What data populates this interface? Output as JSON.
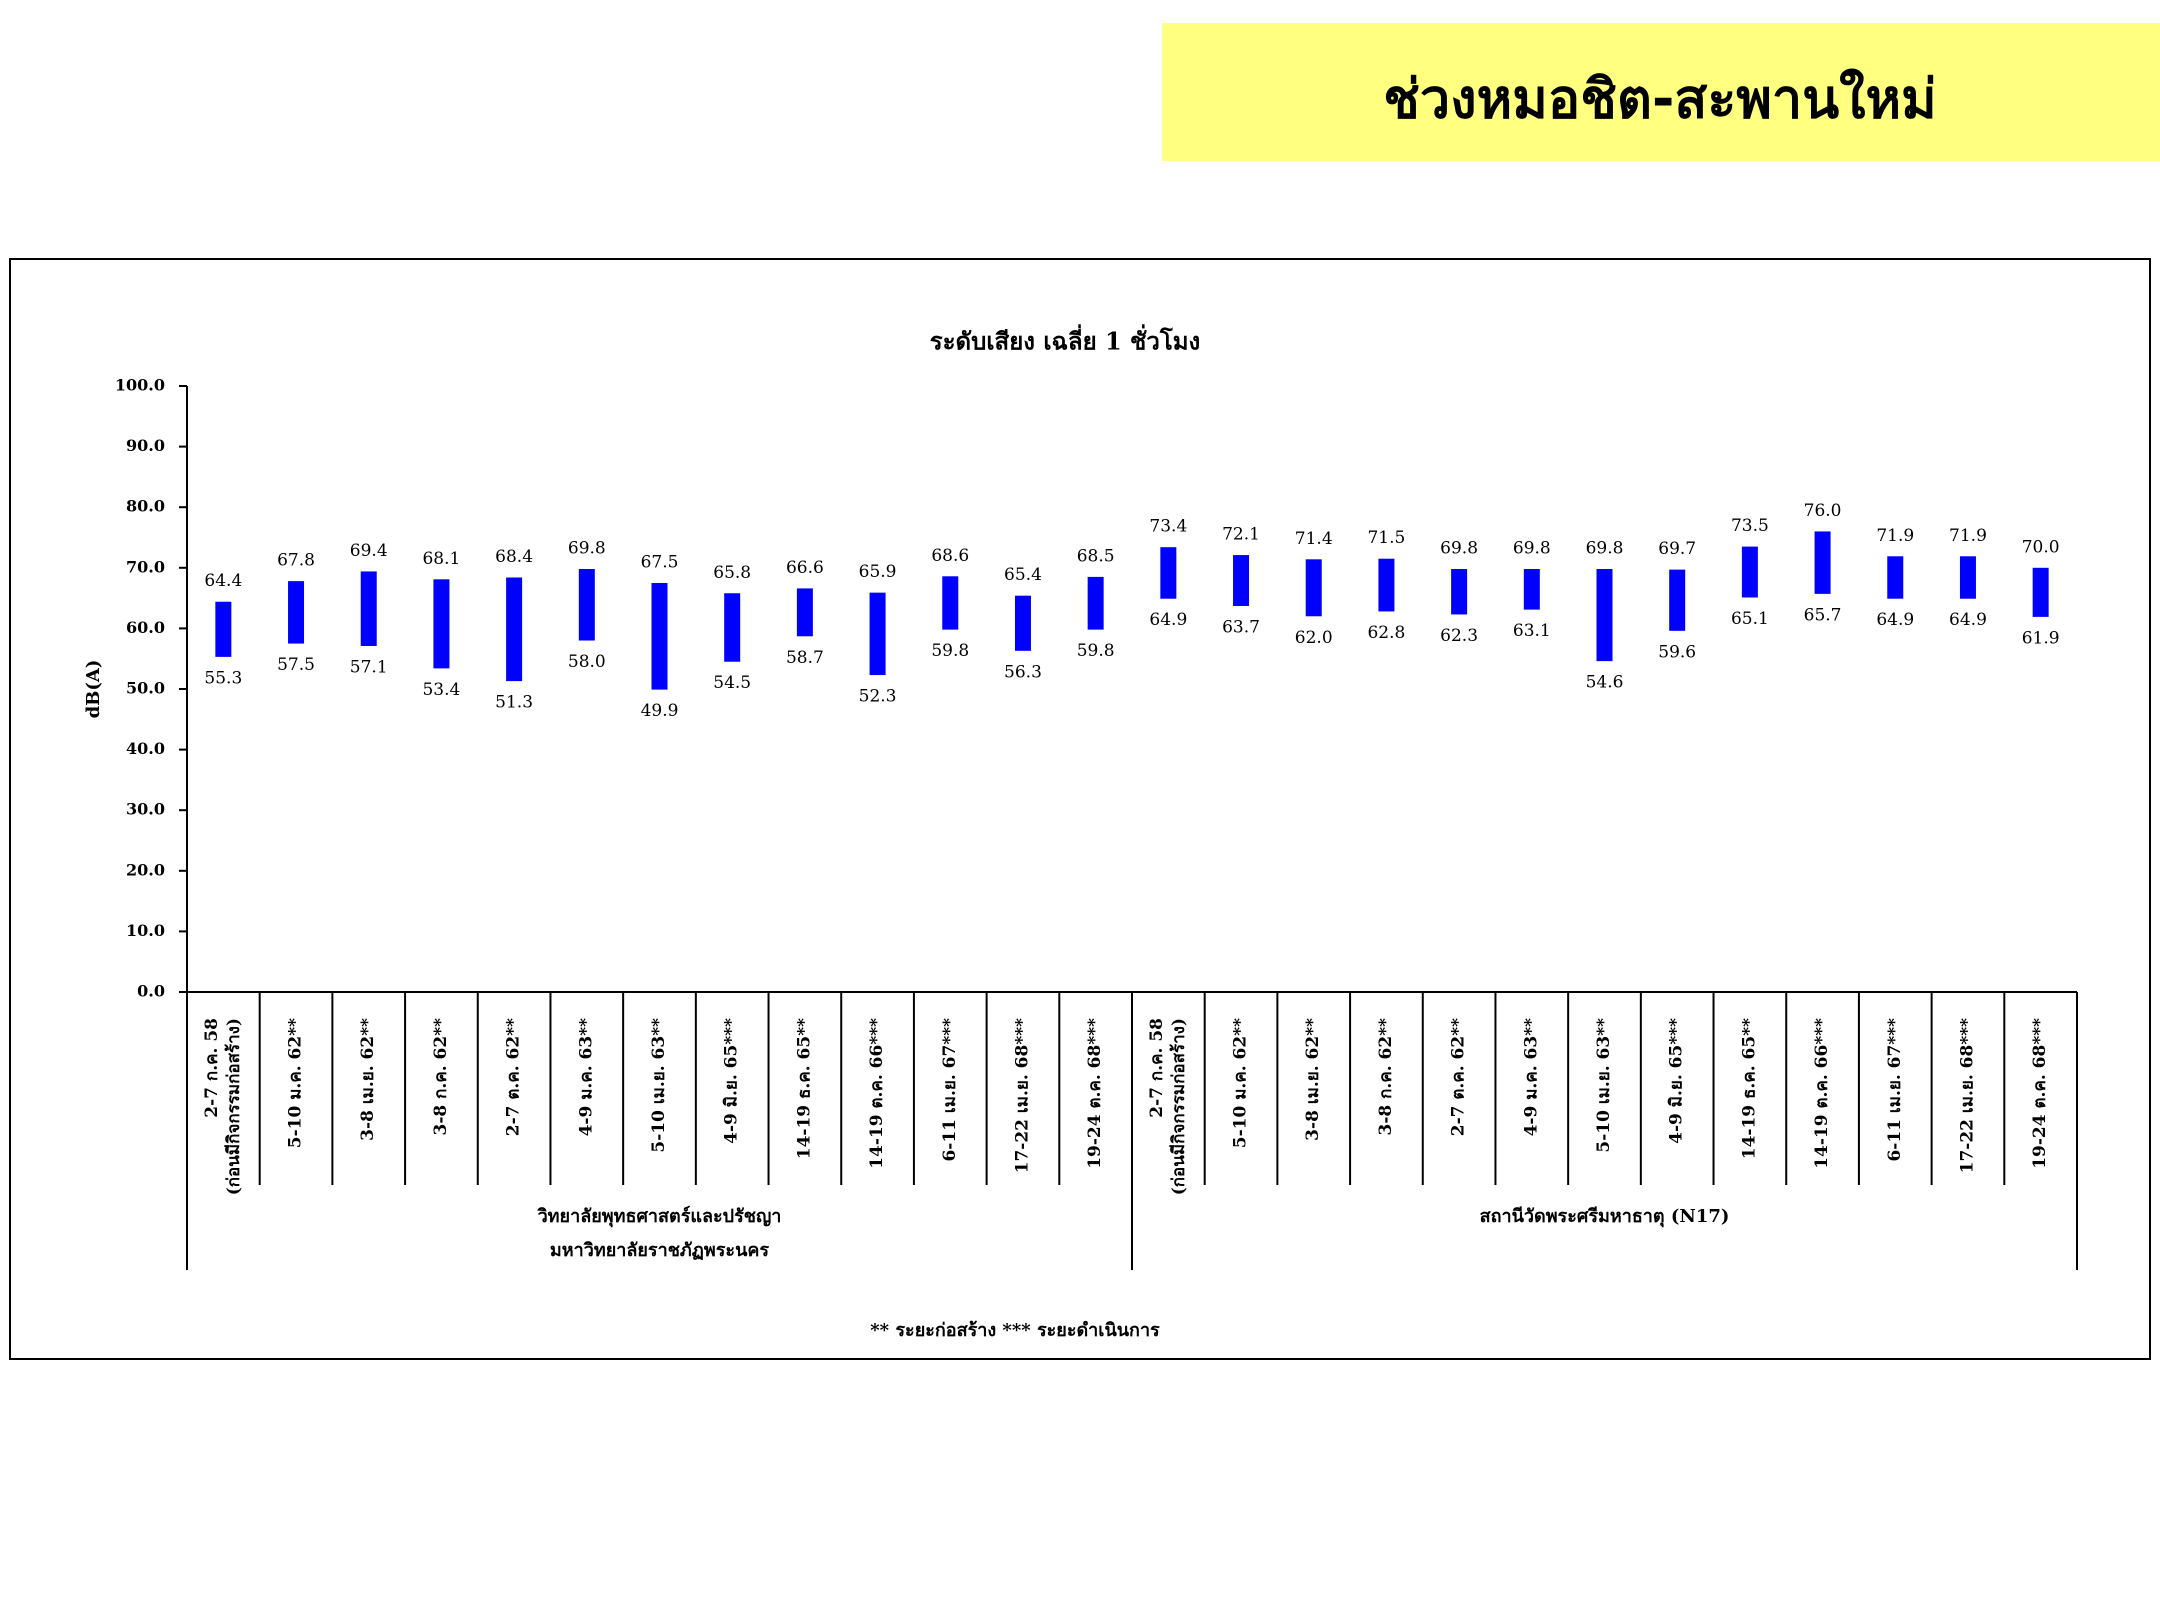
{
  "header": {
    "title": "ช่วงหมอชิต-สะพานใหม่"
  },
  "chart_data": {
    "type": "range-bar",
    "title": "ระดับเสียง เฉลี่ย 1 ชั่วโมง",
    "y_label": "dB(A)",
    "categories": [
      [
        "2-7 ก.ค. 58",
        "(ก่อนมีกิจกรรมก่อสร้าง)"
      ],
      [
        "5-10 ม.ค. 62**"
      ],
      [
        "3-8 เม.ย. 62**"
      ],
      [
        "3-8 ก.ค. 62**"
      ],
      [
        "2-7 ต.ค. 62**"
      ],
      [
        "4-9 ม.ค. 63**"
      ],
      [
        "5-10 เม.ย. 63**"
      ],
      [
        "4-9 มิ.ย. 65***"
      ],
      [
        "14-19 ธ.ค. 65**"
      ],
      [
        "14-19 ต.ค. 66***"
      ],
      [
        "6-11 เม.ย. 67***"
      ],
      [
        "17-22 เม.ย. 68***"
      ],
      [
        "19-24 ต.ค. 68***"
      ],
      [
        "2-7 ก.ค. 58",
        "(ก่อนมีกิจกรรมก่อสร้าง)"
      ],
      [
        "5-10 ม.ค. 62**"
      ],
      [
        "3-8 เม.ย. 62**"
      ],
      [
        "3-8 ก.ค. 62**"
      ],
      [
        "2-7 ต.ค. 62**"
      ],
      [
        "4-9 ม.ค. 63**"
      ],
      [
        "5-10 เม.ย. 63**"
      ],
      [
        "4-9 มิ.ย. 65***"
      ],
      [
        "14-19 ธ.ค. 65**"
      ],
      [
        "14-19 ต.ค. 66***"
      ],
      [
        "6-11 เม.ย. 67***"
      ],
      [
        "17-22 เม.ย. 68***"
      ],
      [
        "19-24 ต.ค. 68***"
      ]
    ],
    "groups": [
      {
        "label": [
          "วิทยาลัยพุทธศาสตร์และปรัชญา",
          "มหาวิทยาลัยราชภัฏพระนคร"
        ],
        "count": 13
      },
      {
        "label": [
          "สถานีวัดพระศรีมหาธาตุ (N17)"
        ],
        "count": 13
      }
    ],
    "series": [
      {
        "color": "#0000ff",
        "values": [
          55.3,
          57.5,
          57.1,
          53.4,
          51.3,
          58.0,
          49.9,
          54.5,
          58.7,
          52.3,
          59.8,
          56.3,
          59.8,
          64.9,
          63.7,
          62.0,
          62.8,
          62.3,
          63.1,
          54.6,
          59.6,
          65.1,
          65.7,
          64.9,
          64.9,
          61.9
        ],
        "value_labels": [
          "55.3",
          "57.5",
          "57.1",
          "53.4",
          "51.3",
          "58.0",
          "49.9",
          "54.5",
          "58.7",
          "52.3",
          "59.8",
          "56.3",
          "59.8",
          "64.9",
          "63.7",
          "62.0",
          "62.8",
          "62.3",
          "63.1",
          "54.6",
          "59.6",
          "65.1",
          "65.7",
          "64.9",
          "64.9",
          "61.9"
        ]
      },
      {
        "color": "#0000ff",
        "values": [
          64.4,
          67.8,
          69.4,
          68.1,
          68.4,
          69.8,
          67.5,
          65.8,
          66.6,
          65.9,
          68.6,
          65.4,
          68.5,
          73.4,
          72.1,
          71.4,
          71.5,
          69.8,
          69.8,
          69.8,
          69.7,
          73.5,
          76.0,
          71.9,
          71.9,
          70.0
        ],
        "value_labels": [
          "64.4",
          "67.8",
          "69.4",
          "68.1",
          "68.4",
          "69.8",
          "67.5",
          "65.8",
          "66.6",
          "65.9",
          "68.6",
          "65.4",
          "68.5",
          "73.4",
          "72.1",
          "71.4",
          "71.5",
          "69.8",
          "69.8",
          "69.8",
          "69.7",
          "73.5",
          "76.0",
          "71.9",
          "71.9",
          "70.0"
        ]
      }
    ],
    "ylim": [
      0,
      100
    ],
    "yticks": [
      {
        "value": 0,
        "label": "0.0"
      },
      {
        "value": 10,
        "label": "10.0"
      },
      {
        "value": 20,
        "label": "20.0"
      },
      {
        "value": 30,
        "label": "30.0"
      },
      {
        "value": 40,
        "label": "40.0"
      },
      {
        "value": 50,
        "label": "50.0"
      },
      {
        "value": 60,
        "label": "60.0"
      },
      {
        "value": 70,
        "label": "70.0"
      },
      {
        "value": 80,
        "label": "80.0"
      },
      {
        "value": 90,
        "label": "90.0"
      },
      {
        "value": 100,
        "label": "100.0"
      }
    ],
    "footnote": "** ระยะก่อสร้าง   *** ระยะดำเนินการ"
  }
}
